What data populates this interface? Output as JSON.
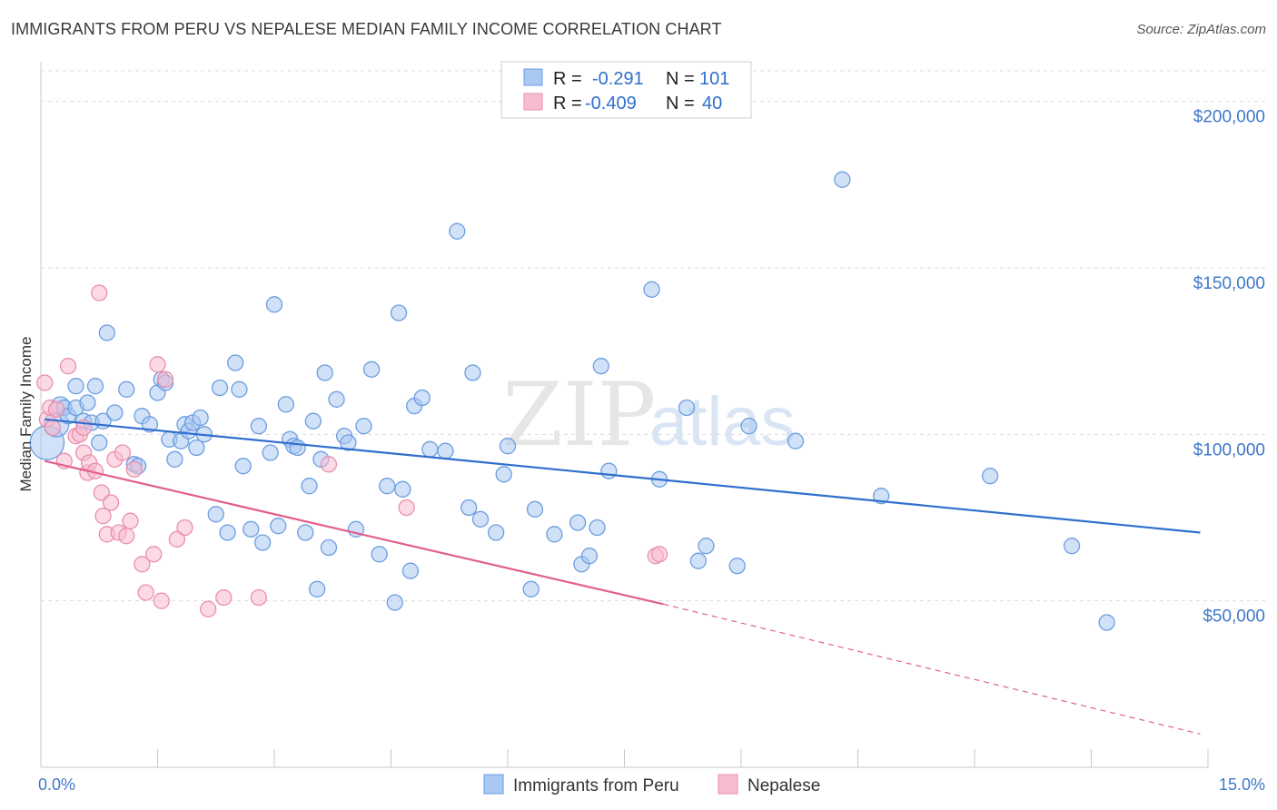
{
  "title": "IMMIGRANTS FROM PERU VS NEPALESE MEDIAN FAMILY INCOME CORRELATION CHART",
  "source": "Source: ZipAtlas.com",
  "watermark": {
    "zip": "ZIP",
    "atlas": "atlas"
  },
  "colors": {
    "peru_fill": "#a9c8f2",
    "peru_stroke": "#6d9ee0",
    "peru_line": "#2f6fce",
    "nepal_fill": "#f7bcd0",
    "nepal_stroke": "#ea8fae",
    "nepal_line": "#e0608a",
    "grid": "#dcdcdc",
    "tick_text": "#3f78c9"
  },
  "stats": [
    {
      "series": "Immigrants from Peru",
      "r_label": "R =",
      "r_value": "-0.291",
      "n_label": "N =",
      "n_value": "101"
    },
    {
      "series": "Nepalese",
      "r_label": "R =",
      "r_value": "-0.409",
      "n_label": "N =",
      "n_value": "40"
    }
  ],
  "chart_data": {
    "type": "scatter",
    "title": "IMMIGRANTS FROM PERU VS NEPALESE MEDIAN FAMILY INCOME CORRELATION CHART",
    "xlabel": "",
    "ylabel": "Median Family Income",
    "xlim": [
      0,
      15
    ],
    "ylim": [
      0,
      210000
    ],
    "x_tick_labels": [
      "0.0%",
      "15.0%"
    ],
    "y_ticks": [
      50000,
      100000,
      150000,
      200000
    ],
    "y_tick_labels": [
      "$50,000",
      "$100,000",
      "$150,000",
      "$200,000"
    ],
    "grid": true,
    "legend_position": "bottom-center",
    "series": [
      {
        "name": "Immigrants from Peru",
        "trend": {
          "x": [
            0.05,
            14.9
          ],
          "y": [
            104500,
            70500
          ]
        },
        "points": [
          [
            0.08,
            97500,
            2.2
          ],
          [
            0.2,
            103000,
            1.6
          ],
          [
            0.25,
            108500,
            1.2
          ],
          [
            0.3,
            108000,
            1
          ],
          [
            0.35,
            105500,
            1
          ],
          [
            0.45,
            108000,
            1
          ],
          [
            0.45,
            114500,
            1
          ],
          [
            0.55,
            104000,
            1
          ],
          [
            0.6,
            109500,
            1
          ],
          [
            0.65,
            103500,
            1
          ],
          [
            0.7,
            114500,
            1
          ],
          [
            0.75,
            97500,
            1
          ],
          [
            0.8,
            104000,
            1
          ],
          [
            0.85,
            130500,
            1
          ],
          [
            0.95,
            106500,
            1
          ],
          [
            1.1,
            113500,
            1
          ],
          [
            1.2,
            91000,
            1
          ],
          [
            1.25,
            90500,
            1
          ],
          [
            1.3,
            105500,
            1
          ],
          [
            1.4,
            103000,
            1
          ],
          [
            1.5,
            112500,
            1
          ],
          [
            1.55,
            116500,
            1
          ],
          [
            1.6,
            115500,
            1
          ],
          [
            1.65,
            98500,
            1
          ],
          [
            1.72,
            92500,
            1
          ],
          [
            1.8,
            98000,
            1
          ],
          [
            1.85,
            103000,
            1
          ],
          [
            1.9,
            101000,
            1
          ],
          [
            1.95,
            103500,
            1
          ],
          [
            2.0,
            96000,
            1
          ],
          [
            2.05,
            105000,
            1
          ],
          [
            2.1,
            100000,
            1
          ],
          [
            2.25,
            76000,
            1
          ],
          [
            2.3,
            114000,
            1
          ],
          [
            2.4,
            70500,
            1
          ],
          [
            2.5,
            121500,
            1
          ],
          [
            2.55,
            113500,
            1
          ],
          [
            2.6,
            90500,
            1
          ],
          [
            2.7,
            71500,
            1
          ],
          [
            2.8,
            102500,
            1
          ],
          [
            2.85,
            67500,
            1
          ],
          [
            2.95,
            94500,
            1
          ],
          [
            3.0,
            139000,
            1
          ],
          [
            3.05,
            72500,
            1
          ],
          [
            3.15,
            109000,
            1
          ],
          [
            3.2,
            98500,
            1
          ],
          [
            3.25,
            96500,
            1
          ],
          [
            3.3,
            96000,
            1
          ],
          [
            3.4,
            70500,
            1
          ],
          [
            3.45,
            84500,
            1
          ],
          [
            3.5,
            104000,
            1
          ],
          [
            3.55,
            53500,
            1
          ],
          [
            3.6,
            92500,
            1
          ],
          [
            3.65,
            118500,
            1
          ],
          [
            3.7,
            66000,
            1
          ],
          [
            3.8,
            110500,
            1
          ],
          [
            3.9,
            99500,
            1
          ],
          [
            3.95,
            97500,
            1
          ],
          [
            4.05,
            71500,
            1
          ],
          [
            4.15,
            102500,
            1
          ],
          [
            4.25,
            119500,
            1
          ],
          [
            4.35,
            64000,
            1
          ],
          [
            4.45,
            84500,
            1
          ],
          [
            4.55,
            49500,
            1
          ],
          [
            4.6,
            136500,
            1
          ],
          [
            4.65,
            83500,
            1
          ],
          [
            4.75,
            59000,
            1
          ],
          [
            4.8,
            108500,
            1
          ],
          [
            4.9,
            111000,
            1
          ],
          [
            5.0,
            95500,
            1
          ],
          [
            5.2,
            95000,
            1
          ],
          [
            5.35,
            161000,
            1
          ],
          [
            5.5,
            78000,
            1
          ],
          [
            5.55,
            118500,
            1
          ],
          [
            5.65,
            74500,
            1
          ],
          [
            5.85,
            70500,
            1
          ],
          [
            5.95,
            88000,
            1
          ],
          [
            6.0,
            96500,
            1
          ],
          [
            6.3,
            53500,
            1
          ],
          [
            6.35,
            77500,
            1
          ],
          [
            6.6,
            70000,
            1
          ],
          [
            6.9,
            73500,
            1
          ],
          [
            6.95,
            61000,
            1
          ],
          [
            7.05,
            63500,
            1
          ],
          [
            7.15,
            72000,
            1
          ],
          [
            7.2,
            120500,
            1
          ],
          [
            7.3,
            89000,
            1
          ],
          [
            7.85,
            143500,
            1
          ],
          [
            7.95,
            86500,
            1
          ],
          [
            8.3,
            108000,
            1
          ],
          [
            8.45,
            62000,
            1
          ],
          [
            8.55,
            66500,
            1
          ],
          [
            8.95,
            60500,
            1
          ],
          [
            9.1,
            102500,
            1
          ],
          [
            9.7,
            98000,
            1
          ],
          [
            10.3,
            176500,
            1
          ],
          [
            10.8,
            81500,
            1
          ],
          [
            12.2,
            87500,
            1
          ],
          [
            13.25,
            66500,
            1
          ],
          [
            13.7,
            43500,
            1
          ]
        ]
      },
      {
        "name": "Nepalese",
        "trend": {
          "x": [
            0.05,
            8.0
          ],
          "y": [
            92000,
            49000
          ]
        },
        "trend_ext": {
          "x": [
            8.0,
            14.9
          ],
          "y": [
            49000,
            10000
          ]
        },
        "points": [
          [
            0.05,
            115500,
            1
          ],
          [
            0.08,
            104500,
            1
          ],
          [
            0.12,
            108000,
            1
          ],
          [
            0.15,
            102000,
            1
          ],
          [
            0.2,
            107500,
            1
          ],
          [
            0.3,
            92000,
            1
          ],
          [
            0.35,
            120500,
            1
          ],
          [
            0.45,
            99500,
            1
          ],
          [
            0.5,
            100000,
            1
          ],
          [
            0.55,
            94500,
            1
          ],
          [
            0.6,
            88500,
            1
          ],
          [
            0.62,
            91500,
            1
          ],
          [
            0.7,
            89000,
            1
          ],
          [
            0.75,
            142500,
            1
          ],
          [
            0.78,
            82500,
            1
          ],
          [
            0.8,
            75500,
            1
          ],
          [
            0.85,
            70000,
            1
          ],
          [
            0.9,
            79500,
            1
          ],
          [
            0.95,
            92500,
            1
          ],
          [
            1.0,
            70500,
            1
          ],
          [
            1.05,
            94500,
            1
          ],
          [
            1.1,
            69500,
            1
          ],
          [
            1.15,
            74000,
            1
          ],
          [
            1.2,
            89500,
            1
          ],
          [
            1.3,
            61000,
            1
          ],
          [
            1.35,
            52500,
            1
          ],
          [
            1.45,
            64000,
            1
          ],
          [
            1.5,
            121000,
            1
          ],
          [
            1.55,
            50000,
            1
          ],
          [
            1.6,
            116500,
            1
          ],
          [
            1.75,
            68500,
            1
          ],
          [
            1.85,
            72000,
            1
          ],
          [
            2.15,
            47500,
            1
          ],
          [
            2.35,
            51000,
            1
          ],
          [
            3.7,
            91000,
            1
          ],
          [
            4.7,
            78000,
            1
          ],
          [
            7.9,
            63500,
            1
          ],
          [
            7.95,
            64000,
            1
          ],
          [
            2.8,
            51000,
            1
          ],
          [
            0.55,
            102000,
            1
          ]
        ]
      }
    ]
  },
  "legend": [
    {
      "label": "Immigrants from Peru"
    },
    {
      "label": "Nepalese"
    }
  ]
}
